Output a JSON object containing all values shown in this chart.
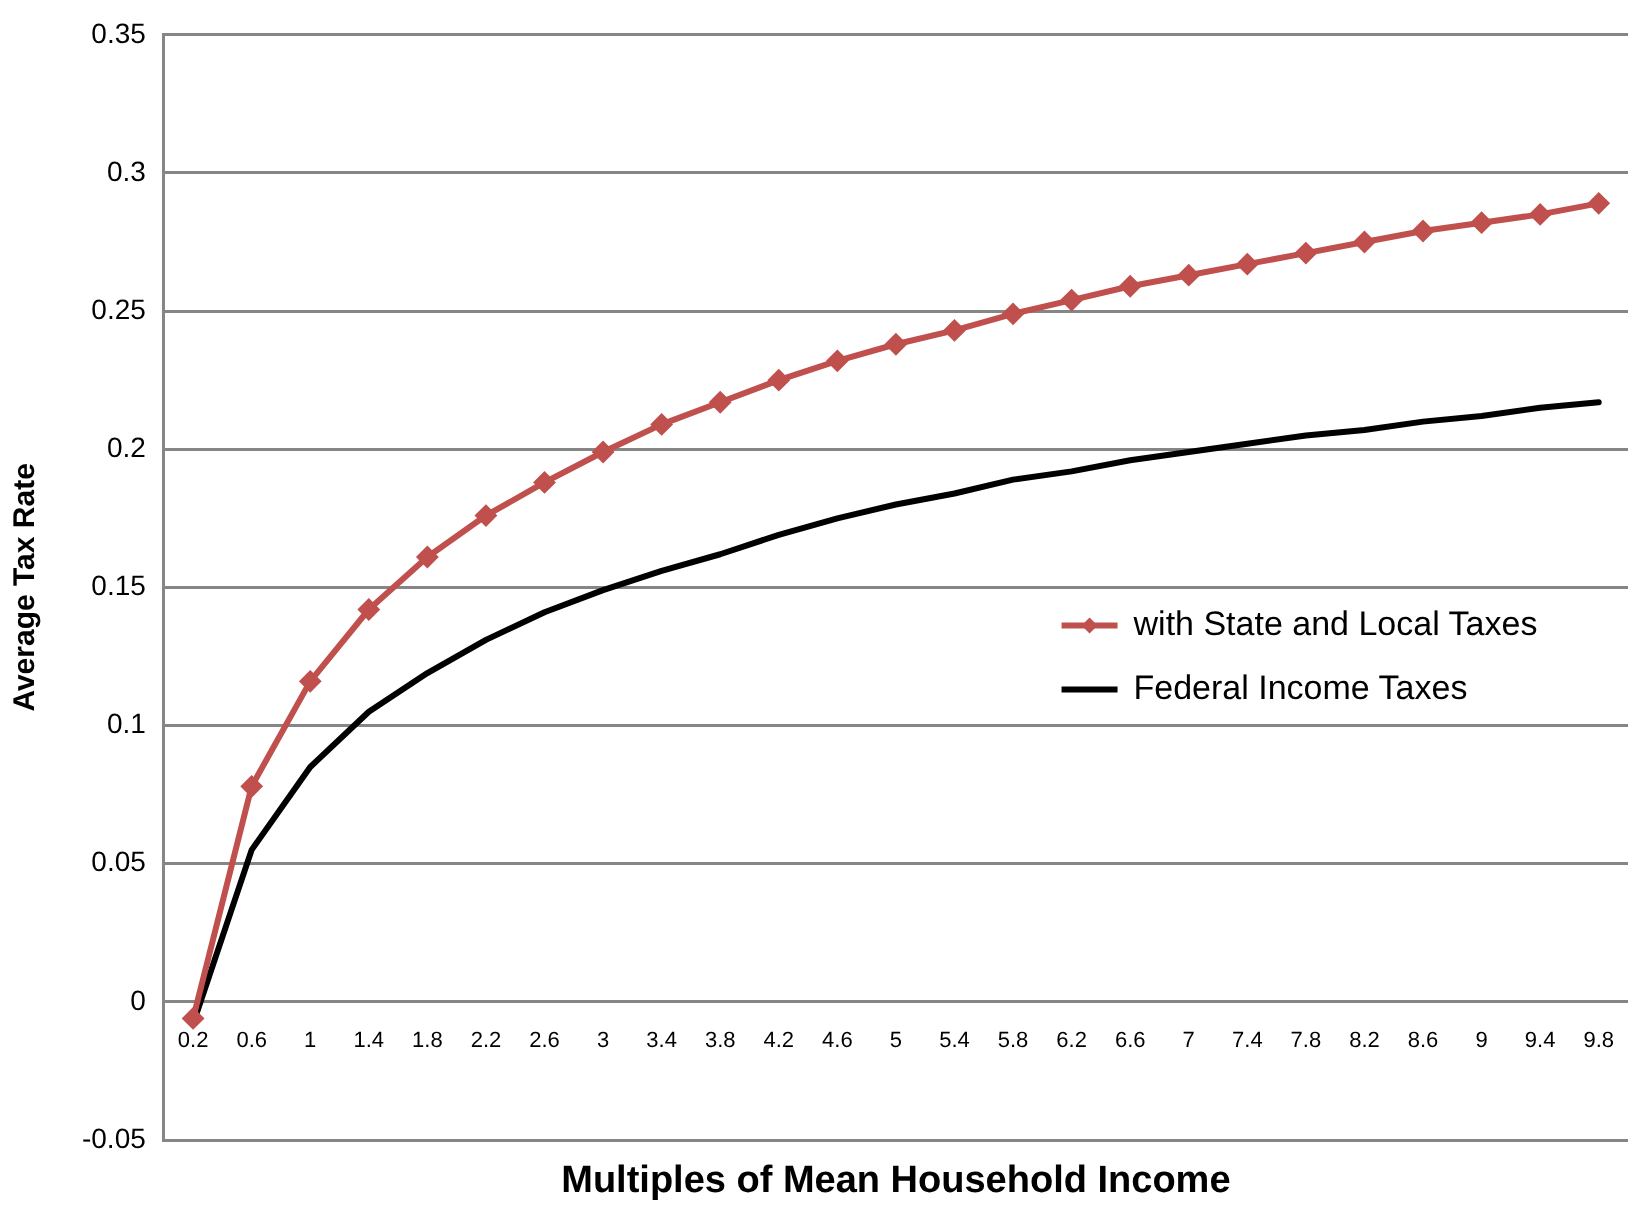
{
  "chart_data": {
    "type": "line",
    "xlabel": "Multiples of Mean Household Income",
    "ylabel": "Average Tax Rate",
    "categories": [
      "0.2",
      "0.6",
      "1",
      "1.4",
      "1.8",
      "2.2",
      "2.6",
      "3",
      "3.4",
      "3.8",
      "4.2",
      "4.6",
      "5",
      "5.4",
      "5.8",
      "6.2",
      "6.6",
      "7",
      "7.4",
      "7.8",
      "8.2",
      "8.6",
      "9",
      "9.4",
      "9.8"
    ],
    "series": [
      {
        "name": "with State and Local Taxes",
        "color": "#c0504d",
        "marker": "diamond",
        "values": [
          -0.006,
          0.078,
          0.116,
          0.142,
          0.161,
          0.176,
          0.188,
          0.199,
          0.209,
          0.217,
          0.225,
          0.232,
          0.238,
          0.243,
          0.249,
          0.254,
          0.259,
          0.263,
          0.267,
          0.271,
          0.275,
          0.279,
          0.282,
          0.285,
          0.289
        ]
      },
      {
        "name": "Federal Income Taxes",
        "color": "#000000",
        "marker": "none",
        "values": [
          -0.008,
          0.055,
          0.085,
          0.105,
          0.119,
          0.131,
          0.141,
          0.149,
          0.156,
          0.162,
          0.169,
          0.175,
          0.18,
          0.184,
          0.189,
          0.192,
          0.196,
          0.199,
          0.202,
          0.205,
          0.207,
          0.21,
          0.212,
          0.215,
          0.217
        ]
      }
    ],
    "ylim": [
      -0.05,
      0.35
    ],
    "yticks": [
      -0.05,
      0,
      0.05,
      0.1,
      0.15,
      0.2,
      0.25,
      0.3,
      0.35
    ],
    "grid": "y",
    "legend": "right",
    "line_style": "solid"
  }
}
